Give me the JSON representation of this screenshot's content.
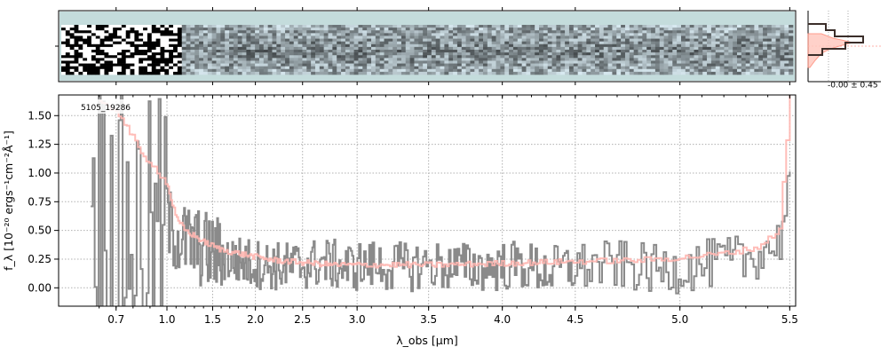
{
  "chart_data": [
    {
      "panel": "2D spectrum",
      "type": "heatmap",
      "colors": {
        "background": "#c4dcdc",
        "dark": "#000000"
      }
    },
    {
      "panel": "profile",
      "type": "line",
      "annotation": "-0.00 ± 0.45",
      "colors": {
        "model": "#ff8c7a",
        "data": "#3b2e2a"
      }
    },
    {
      "panel": "1D spectrum",
      "type": "line",
      "object_label": "5105_19286",
      "xlabel": "λ_obs [μm]",
      "ylabel": "f_λ [10⁻²⁰ ergs⁻¹cm⁻²Å⁻¹]",
      "x_ticks": [
        "0.7",
        "1.0",
        "1.5",
        "2.0",
        "2.5",
        "3.0",
        "3.5",
        "4.0",
        "4.5",
        "5.0",
        "5.5"
      ],
      "x_tick_values": [
        0.7,
        1.0,
        1.5,
        2.0,
        2.5,
        3.0,
        3.5,
        4.0,
        4.5,
        5.0,
        5.5
      ],
      "y_ticks": [
        "0.00",
        "0.25",
        "0.50",
        "0.75",
        "1.00",
        "1.25",
        "1.50"
      ],
      "y_tick_values": [
        0.0,
        0.25,
        0.5,
        0.75,
        1.0,
        1.25,
        1.5
      ],
      "ylim": [
        -0.16,
        1.68
      ],
      "xlim": [
        0.5,
        5.52
      ],
      "grid": true,
      "series": [
        {
          "kind": "data",
          "color": "#8a8a8a",
          "x": [
            0.6,
            0.7,
            0.8,
            0.9,
            1.0,
            1.1,
            1.2,
            1.35,
            1.5,
            1.7,
            1.9,
            2.1,
            2.3,
            2.5,
            2.7,
            2.9,
            3.1,
            3.3,
            3.5,
            3.7,
            3.9,
            4.1,
            4.3,
            4.5,
            4.7,
            4.9,
            5.1,
            5.3,
            5.45,
            5.5
          ],
          "y": [
            0.8,
            0.6,
            0.5,
            0.45,
            0.55,
            0.45,
            0.4,
            0.35,
            0.3,
            0.25,
            0.22,
            0.2,
            0.18,
            0.2,
            0.22,
            0.18,
            0.2,
            0.18,
            0.2,
            0.18,
            0.18,
            0.2,
            0.15,
            0.18,
            0.2,
            0.15,
            0.2,
            0.25,
            0.4,
            1.0
          ]
        },
        {
          "kind": "model",
          "color": "#ffb6b0",
          "x": [
            0.6,
            0.7,
            0.8,
            0.85,
            0.9,
            1.0,
            1.1,
            1.2,
            1.3,
            1.4,
            1.6,
            1.8,
            2.0,
            2.2,
            2.5,
            2.8,
            3.0,
            3.3,
            3.6,
            3.9,
            4.2,
            4.5,
            4.8,
            5.0,
            5.2,
            5.35,
            5.45,
            5.5
          ],
          "y": [
            1.6,
            1.55,
            1.3,
            1.15,
            1.1,
            0.9,
            0.6,
            0.5,
            0.45,
            0.4,
            0.33,
            0.3,
            0.27,
            0.24,
            0.22,
            0.2,
            0.2,
            0.2,
            0.2,
            0.21,
            0.22,
            0.23,
            0.24,
            0.26,
            0.3,
            0.35,
            0.5,
            1.7
          ]
        }
      ]
    }
  ]
}
